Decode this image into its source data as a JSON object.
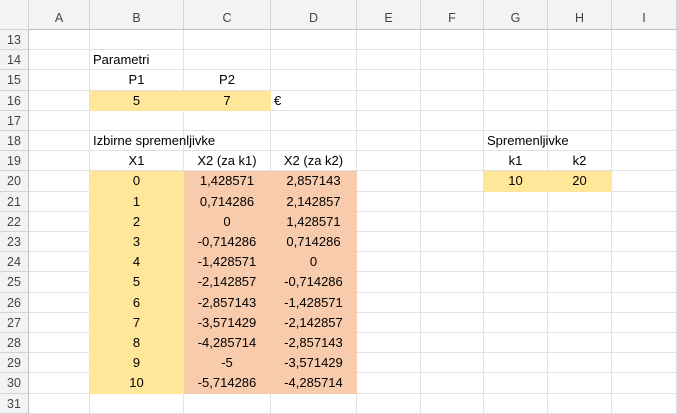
{
  "columns": [
    "A",
    "B",
    "C",
    "D",
    "E",
    "F",
    "G",
    "H",
    "I"
  ],
  "rows": [
    "13",
    "14",
    "15",
    "16",
    "17",
    "18",
    "19",
    "20",
    "21",
    "22",
    "23",
    "24",
    "25",
    "26",
    "27",
    "28",
    "29",
    "30",
    "31"
  ],
  "parametri": {
    "title": "Parametri",
    "p1_label": "P1",
    "p2_label": "P2",
    "p1_value": "5",
    "p2_value": "7",
    "unit": "€"
  },
  "izbirne": {
    "title": "Izbirne spremenljivke",
    "x1_label": "X1",
    "x2k1_label": "X2 (za k1)",
    "x2k2_label": "X2 (za k2)",
    "x1": [
      "0",
      "1",
      "2",
      "3",
      "4",
      "5",
      "6",
      "7",
      "8",
      "9",
      "10"
    ],
    "x2k1": [
      "1,428571",
      "0,714286",
      "0",
      "-0,714286",
      "-1,428571",
      "-2,142857",
      "-2,857143",
      "-3,571429",
      "-4,285714",
      "-5",
      "-5,714286"
    ],
    "x2k2": [
      "2,857143",
      "2,142857",
      "1,428571",
      "0,714286",
      "0",
      "-0,714286",
      "-1,428571",
      "-2,142857",
      "-2,857143",
      "-3,571429",
      "-4,285714"
    ]
  },
  "spremenljivke": {
    "title": "Spremenljivke",
    "k1_label": "k1",
    "k2_label": "k2",
    "k1_value": "10",
    "k2_value": "20"
  },
  "colors": {
    "input_fill": "#ffe699",
    "computed_fill": "#f8cbad",
    "header_fill": "#f3f3f3"
  }
}
